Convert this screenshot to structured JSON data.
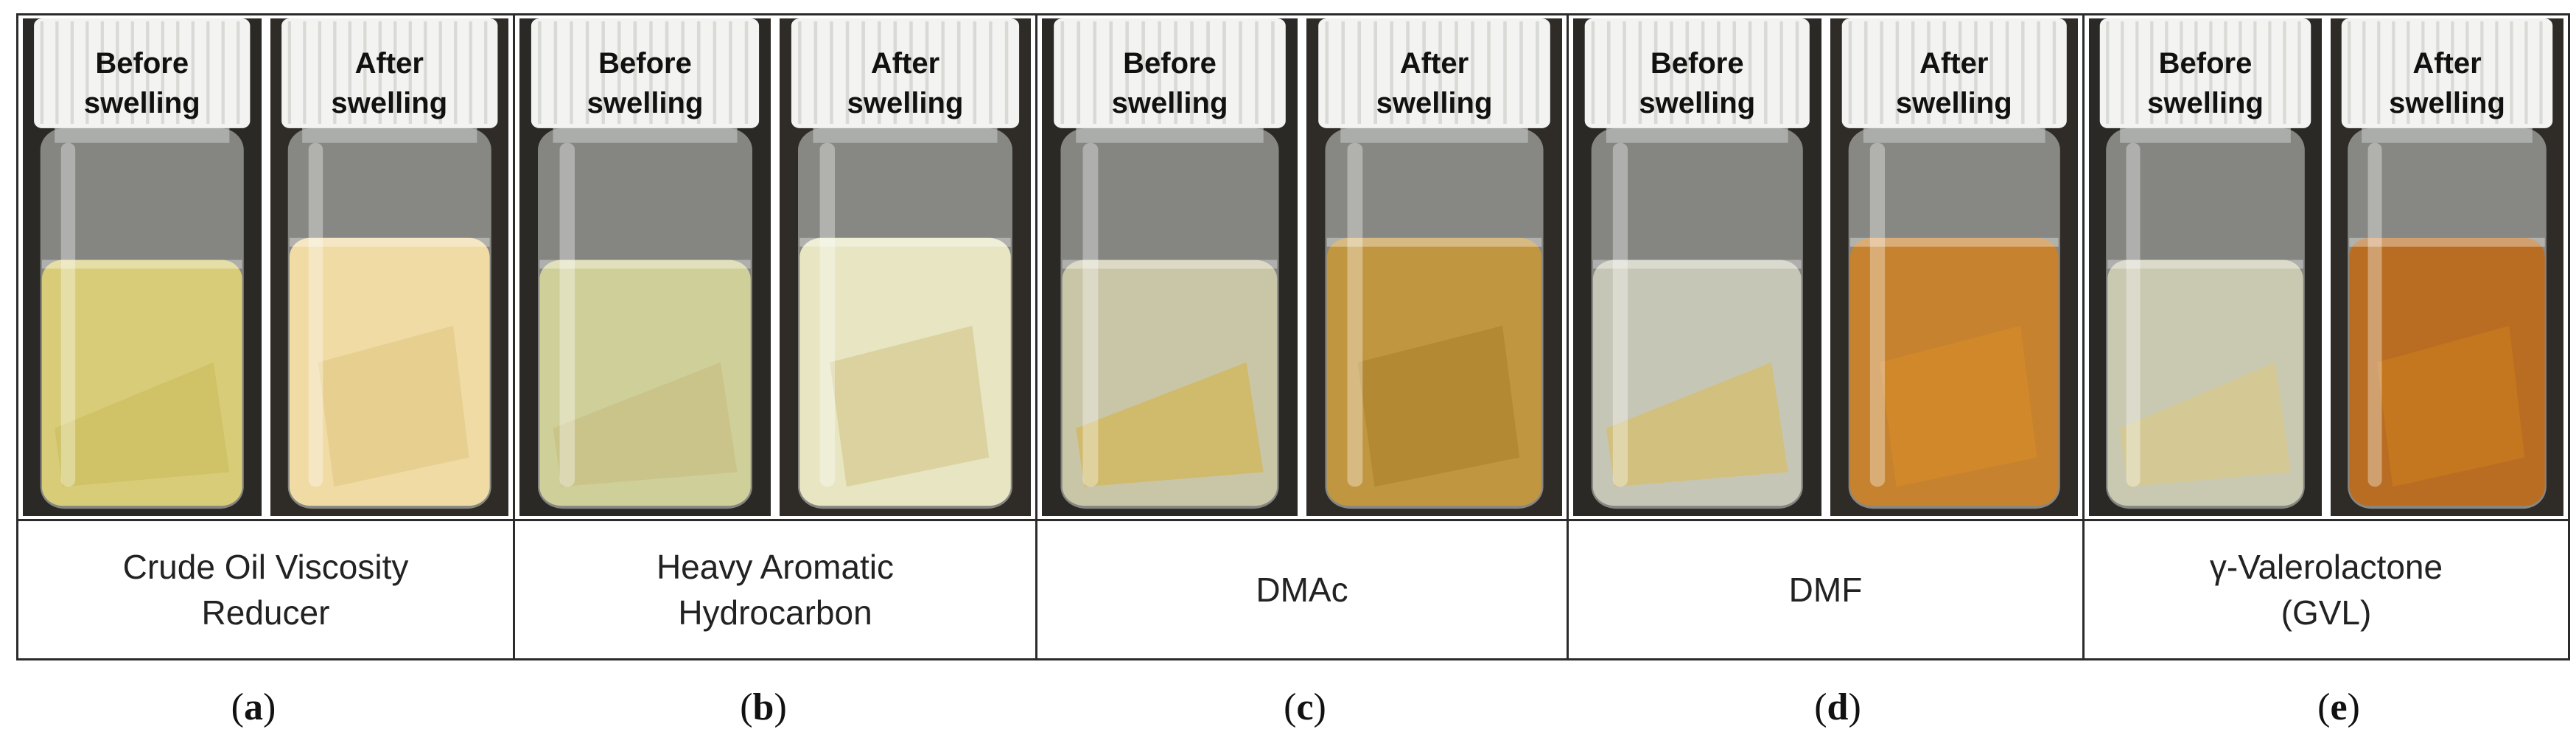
{
  "panels": [
    {
      "solvent": "Crude Oil Viscosity\nReducer",
      "letter": "a",
      "before": {
        "label": "Before\nswelling",
        "liquid": "#d8cc78",
        "film": "#cdbd5e"
      },
      "after": {
        "label": "After\nswelling",
        "liquid": "#f0dba4",
        "film": "#e5cd8d"
      }
    },
    {
      "solvent": "Heavy Aromatic\nHydrocarbon",
      "letter": "b",
      "before": {
        "label": "Before\nswelling",
        "liquid": "#cfcf9a",
        "film": "#c7bf84"
      },
      "after": {
        "label": "After\nswelling",
        "liquid": "#e7e5c2",
        "film": "#d8cf99"
      }
    },
    {
      "solvent": "DMAc",
      "letter": "c",
      "before": {
        "label": "Before\nswelling",
        "liquid": "#c9c6a8",
        "film": "#d3b553"
      },
      "after": {
        "label": "After\nswelling",
        "liquid": "#c19640",
        "film": "#b28733"
      }
    },
    {
      "solvent": "DMF",
      "letter": "d",
      "before": {
        "label": "Before\nswelling",
        "liquid": "#c6c6b6",
        "film": "#d6be66"
      },
      "after": {
        "label": "After\nswelling",
        "liquid": "#c6822e",
        "film": "#d28a2a"
      }
    },
    {
      "solvent": "γ-Valerolactone\n(GVL)",
      "letter": "e",
      "before": {
        "label": "Before\nswelling",
        "liquid": "#c9c8b0",
        "film": "#d8c98a"
      },
      "after": {
        "label": "After\nswelling",
        "liquid": "#b96d22",
        "film": "#c7791f"
      }
    }
  ]
}
